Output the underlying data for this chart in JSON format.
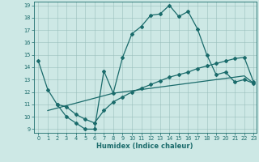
{
  "xlabel": "Humidex (Indice chaleur)",
  "xlim": [
    -0.5,
    23.3
  ],
  "ylim": [
    8.7,
    19.3
  ],
  "yticks": [
    9,
    10,
    11,
    12,
    13,
    14,
    15,
    16,
    17,
    18,
    19
  ],
  "xticks": [
    0,
    1,
    2,
    3,
    4,
    5,
    6,
    7,
    8,
    9,
    10,
    11,
    12,
    13,
    14,
    15,
    16,
    17,
    18,
    19,
    20,
    21,
    22,
    23
  ],
  "bg_color": "#cde8e5",
  "line_color": "#1a6b6b",
  "line1_x": [
    0,
    1,
    2,
    3,
    4,
    5,
    6,
    7,
    8,
    9,
    10,
    11,
    12,
    13,
    14,
    15,
    16,
    17,
    18,
    19,
    20,
    21,
    22,
    23
  ],
  "line1_y": [
    14.5,
    12.2,
    11.0,
    10.0,
    9.5,
    9.0,
    9.0,
    13.7,
    11.9,
    14.8,
    16.7,
    17.3,
    18.2,
    18.3,
    19.0,
    18.1,
    18.5,
    17.1,
    15.0,
    13.4,
    13.6,
    12.8,
    13.0,
    12.7
  ],
  "line2_x": [
    2,
    3,
    4,
    5,
    6,
    7,
    8,
    9,
    10,
    11,
    12,
    13,
    14,
    15,
    16,
    17,
    18,
    19,
    20,
    21,
    22,
    23
  ],
  "line2_y": [
    11.0,
    10.8,
    10.2,
    9.8,
    9.5,
    10.5,
    11.2,
    11.6,
    12.0,
    12.3,
    12.6,
    12.9,
    13.2,
    13.4,
    13.6,
    13.9,
    14.1,
    14.3,
    14.5,
    14.7,
    14.8,
    12.8
  ],
  "line3_x": [
    1,
    2,
    3,
    4,
    5,
    6,
    7,
    8,
    9,
    10,
    11,
    12,
    13,
    14,
    15,
    16,
    17,
    18,
    19,
    20,
    21,
    22,
    23
  ],
  "line3_y": [
    10.5,
    10.7,
    10.9,
    11.1,
    11.3,
    11.5,
    11.7,
    11.9,
    12.0,
    12.1,
    12.2,
    12.3,
    12.4,
    12.5,
    12.6,
    12.7,
    12.8,
    12.9,
    13.0,
    13.1,
    13.2,
    13.3,
    12.7
  ]
}
